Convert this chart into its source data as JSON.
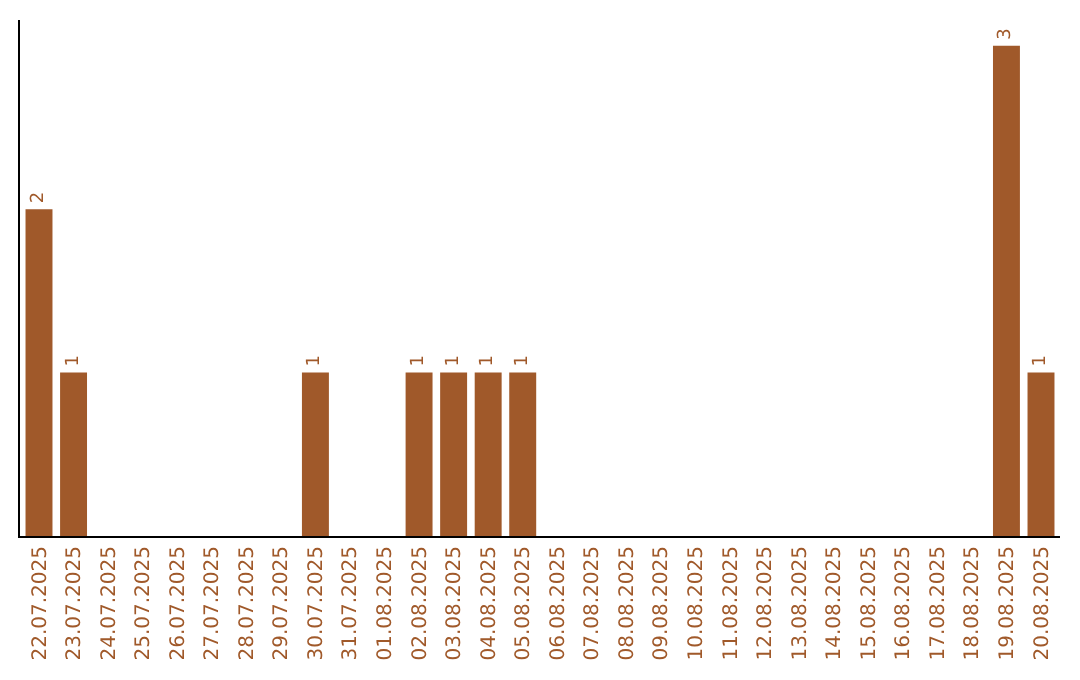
{
  "chart_data": {
    "type": "bar",
    "categories": [
      "22.07.2025",
      "23.07.2025",
      "24.07.2025",
      "25.07.2025",
      "26.07.2025",
      "27.07.2025",
      "28.07.2025",
      "29.07.2025",
      "30.07.2025",
      "31.07.2025",
      "01.08.2025",
      "02.08.2025",
      "03.08.2025",
      "04.08.2025",
      "05.08.2025",
      "06.08.2025",
      "07.08.2025",
      "08.08.2025",
      "09.08.2025",
      "10.08.2025",
      "11.08.2025",
      "12.08.2025",
      "13.08.2025",
      "14.08.2025",
      "15.08.2025",
      "16.08.2025",
      "17.08.2025",
      "18.08.2025",
      "19.08.2025",
      "20.08.2025"
    ],
    "values": [
      2,
      1,
      0,
      0,
      0,
      0,
      0,
      0,
      1,
      0,
      0,
      1,
      1,
      1,
      1,
      0,
      0,
      0,
      0,
      0,
      0,
      0,
      0,
      0,
      0,
      0,
      0,
      0,
      3,
      1
    ],
    "value_labels": [
      "2",
      "1",
      null,
      null,
      null,
      null,
      null,
      null,
      "1",
      null,
      null,
      "1",
      "1",
      "1",
      "1",
      null,
      null,
      null,
      null,
      null,
      null,
      null,
      null,
      null,
      null,
      null,
      null,
      null,
      "3",
      "1"
    ],
    "color": "#a0592a",
    "tick_labels": "x"
  }
}
